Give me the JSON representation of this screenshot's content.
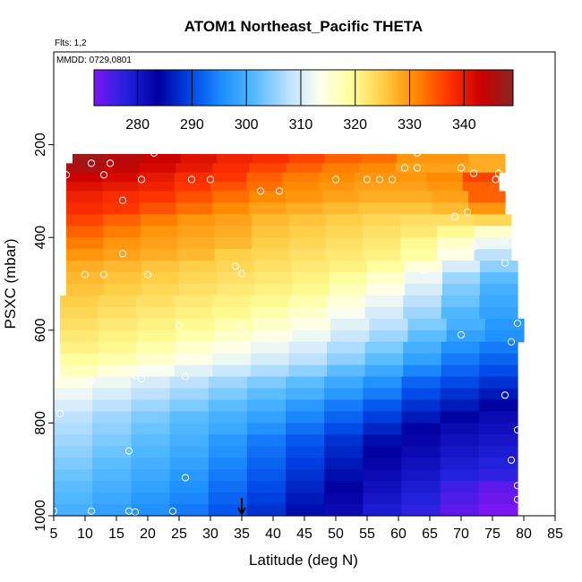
{
  "chart_data": {
    "type": "heatmap",
    "title": "ATOM1 Northeast_Pacific THETA",
    "annotations": [
      "Flts: 1,2",
      "MMDD: 0729,0801"
    ],
    "xlabel": "Latitude (deg N)",
    "ylabel": "PSXC (mbar)",
    "xlim": [
      5,
      85
    ],
    "ylim": [
      1000,
      0
    ],
    "x_ticks": [
      5,
      10,
      15,
      20,
      25,
      30,
      35,
      40,
      45,
      50,
      55,
      60,
      65,
      70,
      75,
      80,
      85
    ],
    "y_ticks": [
      200,
      400,
      600,
      800,
      1000
    ],
    "colorbar": {
      "range": [
        272,
        349
      ],
      "ticks": [
        280,
        290,
        300,
        310,
        320,
        330,
        340
      ],
      "colors": [
        "#7b16f0",
        "#2222dd",
        "#0000a0",
        "#0048e8",
        "#1e90ff",
        "#55bbff",
        "#b8e0ff",
        "#fffff0",
        "#ffff99",
        "#ffcc44",
        "#ff8800",
        "#ff3300",
        "#cc0000",
        "#8b2323"
      ]
    },
    "rows": [
      {
        "p": [
          220,
          240
        ],
        "x": [
          8,
          77
        ],
        "theta": [
          347,
          345,
          343,
          341,
          339,
          338,
          336,
          334,
          333,
          330,
          330,
          328
        ]
      },
      {
        "p": [
          240,
          260
        ],
        "x": [
          7,
          77
        ],
        "theta": [
          346,
          344,
          342,
          340,
          338,
          336,
          334,
          332,
          331,
          329,
          329,
          328
        ]
      },
      {
        "p": [
          260,
          280
        ],
        "x": [
          7,
          76
        ],
        "theta": [
          343,
          342,
          340,
          338,
          337,
          334,
          332,
          331,
          330,
          330,
          331,
          336
        ]
      },
      {
        "p": [
          280,
          300
        ],
        "x": [
          7,
          76
        ],
        "theta": [
          341,
          340,
          339,
          337,
          335,
          333,
          331,
          330,
          329,
          329,
          330,
          334
        ]
      },
      {
        "p": [
          300,
          325
        ],
        "x": [
          7,
          77
        ],
        "theta": [
          339,
          338,
          337,
          335,
          333,
          331,
          330,
          329,
          328,
          328,
          329,
          334
        ]
      },
      {
        "p": [
          325,
          350
        ],
        "x": [
          7,
          77
        ],
        "theta": [
          338,
          337,
          335,
          333,
          331,
          329,
          328,
          327,
          326,
          326,
          327,
          330
        ]
      },
      {
        "p": [
          350,
          375
        ],
        "x": [
          7,
          78
        ],
        "theta": [
          336,
          334,
          332,
          330,
          329,
          327,
          326,
          325,
          324,
          323,
          323,
          324
        ]
      },
      {
        "p": [
          375,
          400
        ],
        "x": [
          7,
          78
        ],
        "theta": [
          334,
          332,
          330,
          329,
          328,
          326,
          325,
          324,
          323,
          322,
          320,
          316
        ]
      },
      {
        "p": [
          400,
          425
        ],
        "x": [
          7,
          78
        ],
        "theta": [
          332,
          330,
          329,
          328,
          327,
          325,
          324,
          323,
          322,
          320,
          316,
          312
        ]
      },
      {
        "p": [
          425,
          450
        ],
        "x": [
          7,
          78
        ],
        "theta": [
          330,
          329,
          328,
          327,
          325,
          324,
          323,
          322,
          321,
          319,
          314,
          308
        ]
      },
      {
        "p": [
          450,
          475
        ],
        "x": [
          7,
          79
        ],
        "theta": [
          328,
          327,
          326,
          325,
          324,
          323,
          322,
          321,
          319,
          315,
          310,
          305
        ]
      },
      {
        "p": [
          475,
          500
        ],
        "x": [
          7,
          79
        ],
        "theta": [
          327,
          326,
          325,
          324,
          323,
          322,
          321,
          319,
          316,
          312,
          306,
          302
        ]
      },
      {
        "p": [
          500,
          525
        ],
        "x": [
          7,
          79
        ],
        "theta": [
          326,
          325,
          324,
          323,
          322,
          321,
          320,
          317,
          314,
          310,
          304,
          300
        ]
      },
      {
        "p": [
          525,
          550
        ],
        "x": [
          6,
          79
        ],
        "theta": [
          325,
          324,
          323,
          322,
          321,
          320,
          318,
          315,
          312,
          308,
          303,
          299
        ]
      },
      {
        "p": [
          550,
          575
        ],
        "x": [
          6,
          79
        ],
        "theta": [
          324,
          323,
          322,
          321,
          320,
          318,
          316,
          313,
          310,
          306,
          301,
          298
        ]
      },
      {
        "p": [
          575,
          600
        ],
        "x": [
          6,
          80
        ],
        "theta": [
          323,
          322,
          321,
          320,
          318,
          316,
          314,
          311,
          308,
          304,
          300,
          297
        ]
      },
      {
        "p": [
          600,
          625
        ],
        "x": [
          6,
          80
        ],
        "theta": [
          322,
          321,
          320,
          318,
          316,
          314,
          312,
          309,
          306,
          302,
          298,
          296
        ]
      },
      {
        "p": [
          625,
          650
        ],
        "x": [
          6,
          79
        ],
        "theta": [
          321,
          320,
          318,
          316,
          314,
          312,
          310,
          307,
          304,
          300,
          296,
          294
        ]
      },
      {
        "p": [
          650,
          675
        ],
        "x": [
          6,
          79
        ],
        "theta": [
          319,
          318,
          316,
          314,
          312,
          310,
          308,
          305,
          302,
          298,
          294,
          292
        ]
      },
      {
        "p": [
          675,
          700
        ],
        "x": [
          6,
          79
        ],
        "theta": [
          317,
          315,
          313,
          311,
          309,
          307,
          305,
          302,
          299,
          295,
          292,
          290
        ]
      },
      {
        "p": [
          700,
          725
        ],
        "x": [
          5,
          79
        ],
        "theta": [
          314,
          312,
          310,
          308,
          306,
          304,
          302,
          299,
          296,
          292,
          290,
          288
        ]
      },
      {
        "p": [
          725,
          750
        ],
        "x": [
          5,
          79
        ],
        "theta": [
          312,
          310,
          308,
          306,
          304,
          302,
          300,
          297,
          294,
          290,
          288,
          286
        ]
      },
      {
        "p": [
          750,
          775
        ],
        "x": [
          5,
          79
        ],
        "theta": [
          310,
          308,
          306,
          304,
          302,
          300,
          297,
          294,
          291,
          288,
          286,
          284
        ]
      },
      {
        "p": [
          775,
          800
        ],
        "x": [
          5,
          79
        ],
        "theta": [
          308,
          306,
          304,
          302,
          300,
          298,
          295,
          292,
          289,
          286,
          284,
          282
        ]
      },
      {
        "p": [
          800,
          825
        ],
        "x": [
          5,
          79
        ],
        "theta": [
          307,
          305,
          303,
          301,
          299,
          296,
          293,
          290,
          287,
          284,
          282,
          281
        ]
      },
      {
        "p": [
          825,
          850
        ],
        "x": [
          5,
          79
        ],
        "theta": [
          306,
          304,
          302,
          300,
          297,
          294,
          291,
          288,
          285,
          283,
          281,
          280
        ]
      },
      {
        "p": [
          850,
          875
        ],
        "x": [
          5,
          79
        ],
        "theta": [
          305,
          303,
          301,
          299,
          296,
          293,
          290,
          287,
          284,
          282,
          280,
          279
        ]
      },
      {
        "p": [
          875,
          900
        ],
        "x": [
          5,
          79
        ],
        "theta": [
          304,
          302,
          300,
          298,
          295,
          292,
          289,
          286,
          283,
          281,
          279,
          278
        ]
      },
      {
        "p": [
          900,
          925
        ],
        "x": [
          5,
          79
        ],
        "theta": [
          303,
          301,
          299,
          297,
          294,
          291,
          288,
          285,
          282,
          280,
          278,
          277
        ]
      },
      {
        "p": [
          925,
          950
        ],
        "x": [
          5,
          79
        ],
        "theta": [
          302,
          300,
          298,
          296,
          293,
          290,
          287,
          284,
          281,
          279,
          276,
          274
        ]
      },
      {
        "p": [
          950,
          975
        ],
        "x": [
          5,
          79
        ],
        "theta": [
          301,
          299,
          297,
          295,
          292,
          289,
          286,
          283,
          280,
          278,
          275,
          273
        ]
      },
      {
        "p": [
          975,
          1000
        ],
        "x": [
          5,
          79
        ],
        "theta": [
          300,
          298,
          296,
          294,
          291,
          288,
          285,
          282,
          279,
          277,
          274,
          272
        ]
      }
    ],
    "observations": [
      [
        11,
        240
      ],
      [
        14,
        240
      ],
      [
        21,
        218
      ],
      [
        7,
        265
      ],
      [
        13,
        265
      ],
      [
        19,
        275
      ],
      [
        27,
        275
      ],
      [
        30,
        275
      ],
      [
        38,
        300
      ],
      [
        41,
        300
      ],
      [
        16,
        320
      ],
      [
        50,
        275
      ],
      [
        55,
        275
      ],
      [
        57,
        275
      ],
      [
        59,
        275
      ],
      [
        61,
        250
      ],
      [
        63,
        250
      ],
      [
        63,
        218
      ],
      [
        70,
        250
      ],
      [
        72,
        262
      ],
      [
        76,
        262
      ],
      [
        75.5,
        275
      ],
      [
        69,
        355
      ],
      [
        71,
        345
      ],
      [
        77,
        405
      ],
      [
        16,
        435
      ],
      [
        72,
        420
      ],
      [
        10,
        480
      ],
      [
        13,
        480
      ],
      [
        20,
        480
      ],
      [
        34,
        462
      ],
      [
        35,
        478
      ],
      [
        64,
        470
      ],
      [
        77,
        455
      ],
      [
        25,
        590
      ],
      [
        35,
        595
      ],
      [
        79,
        585
      ],
      [
        70,
        610
      ],
      [
        78,
        625
      ],
      [
        17,
        685
      ],
      [
        18,
        698
      ],
      [
        19,
        705
      ],
      [
        26,
        700
      ],
      [
        11,
        708
      ],
      [
        77,
        740
      ],
      [
        6,
        780
      ],
      [
        79,
        815
      ],
      [
        17,
        860
      ],
      [
        26,
        918
      ],
      [
        78,
        880
      ],
      [
        79,
        935
      ],
      [
        79,
        965
      ],
      [
        5,
        990
      ],
      [
        11,
        990
      ],
      [
        17,
        990
      ],
      [
        18,
        992
      ],
      [
        24,
        990
      ]
    ],
    "marker": {
      "x": 35,
      "direction": "down"
    }
  }
}
